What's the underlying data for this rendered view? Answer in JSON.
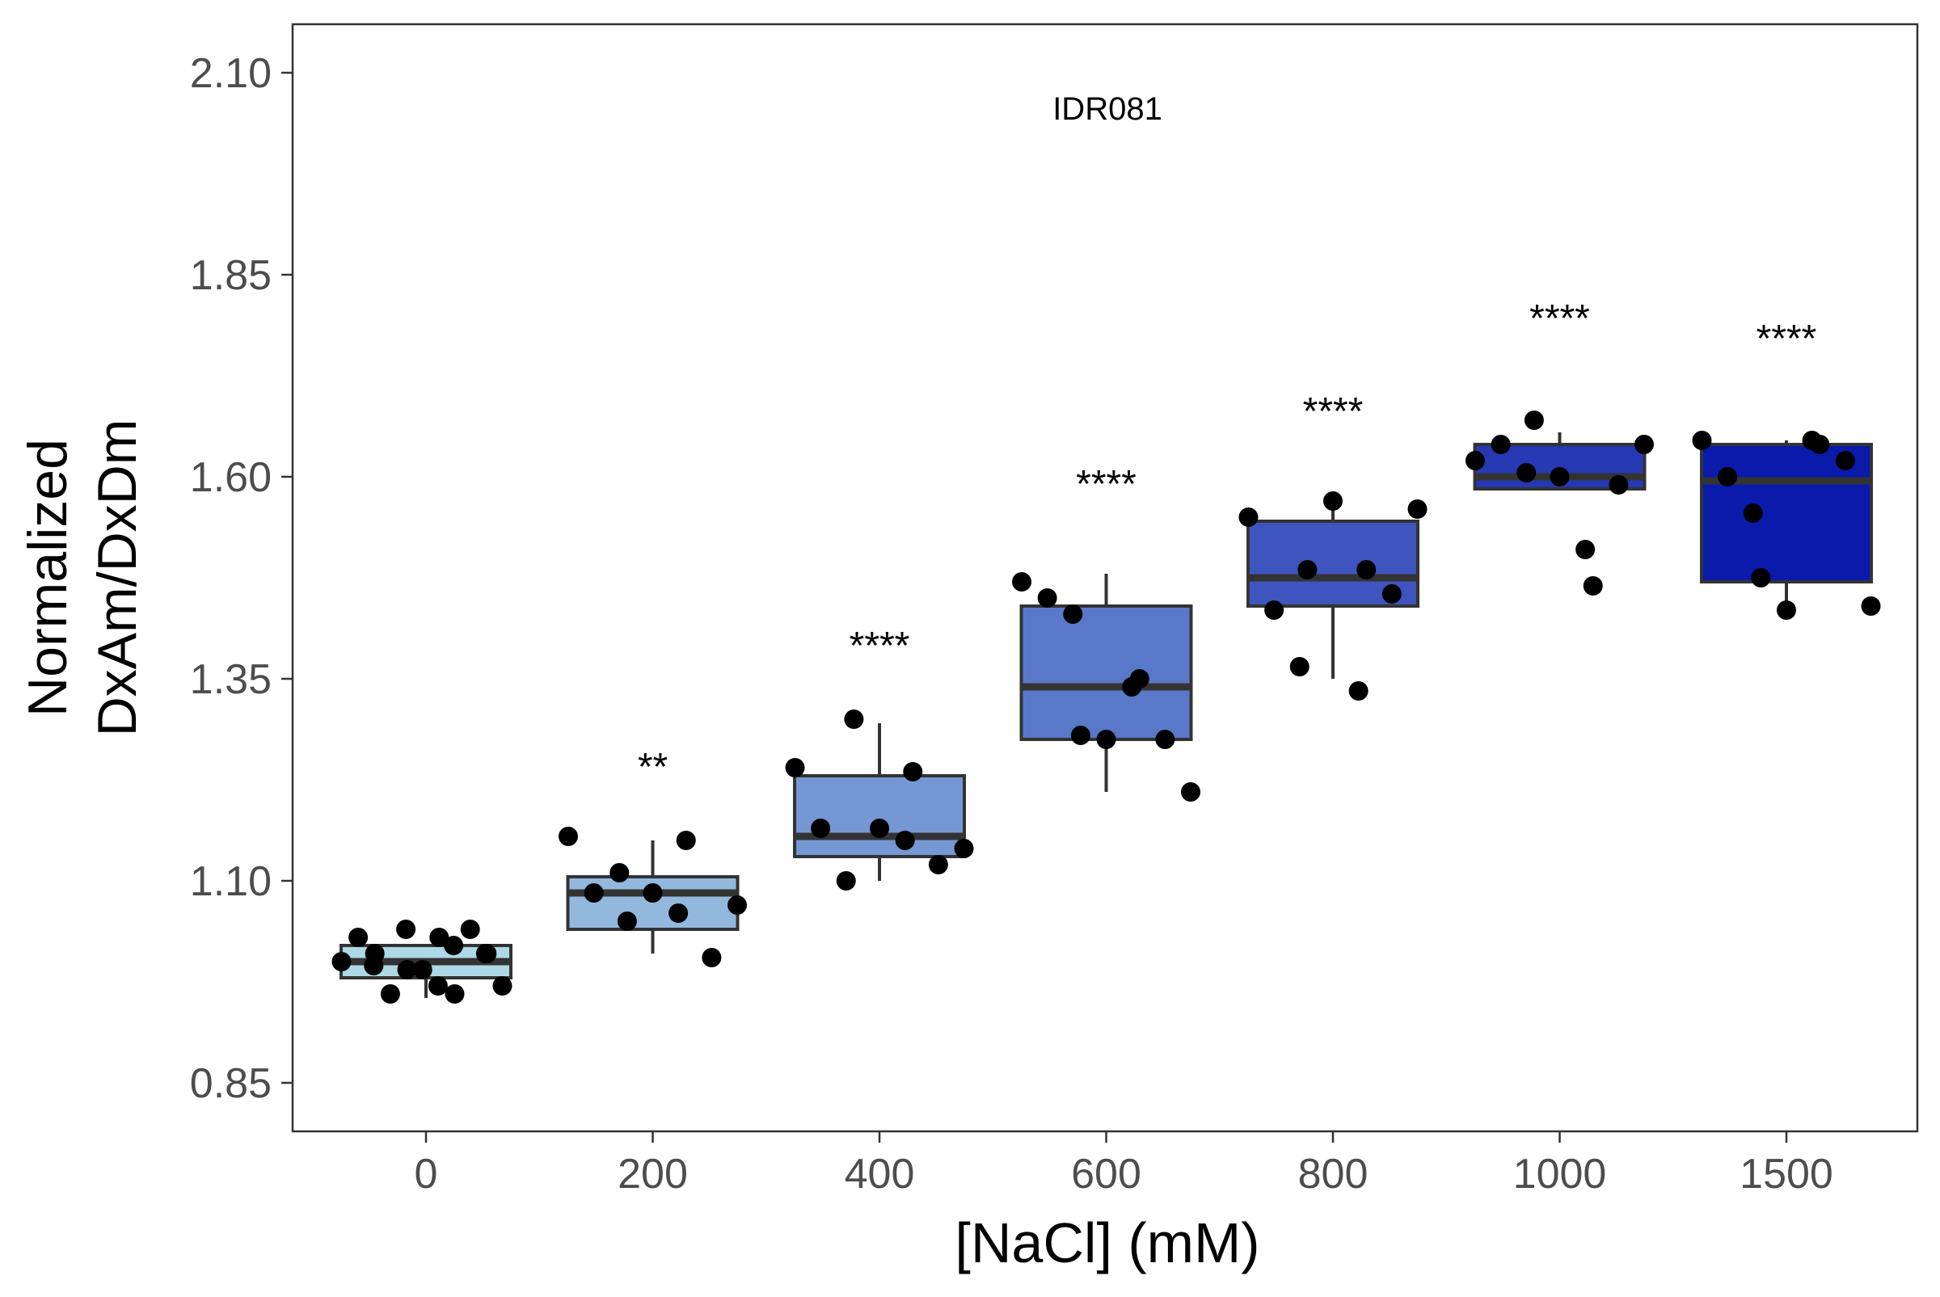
{
  "chart_data": {
    "type": "box",
    "title": "IDR081",
    "xlabel": "[NaCl] (mM)",
    "ylabel_lines": [
      "Normalized",
      "DxAm/DxDm"
    ],
    "ylim": [
      0.79,
      2.16
    ],
    "yticks": [
      "0.85",
      "1.10",
      "1.35",
      "1.60",
      "1.85",
      "2.10"
    ],
    "grid": false,
    "legend": "none",
    "categories": [
      "0",
      "200",
      "400",
      "600",
      "800",
      "1000",
      "1500"
    ],
    "colors": [
      "#ADD8E6",
      "#93B8DE",
      "#7598D4",
      "#5A78C9",
      "#3E55BF",
      "#2738B4",
      "#0A1AAA"
    ],
    "boxes": [
      {
        "q1": 0.98,
        "median": 1.0,
        "q3": 1.02,
        "whisker_low": 0.955,
        "whisker_high": 1.02
      },
      {
        "q1": 1.04,
        "median": 1.085,
        "q3": 1.105,
        "whisker_low": 1.01,
        "whisker_high": 1.15
      },
      {
        "q1": 1.13,
        "median": 1.155,
        "q3": 1.23,
        "whisker_low": 1.1,
        "whisker_high": 1.295
      },
      {
        "q1": 1.275,
        "median": 1.34,
        "q3": 1.44,
        "whisker_low": 1.21,
        "whisker_high": 1.48
      },
      {
        "q1": 1.44,
        "median": 1.475,
        "q3": 1.545,
        "whisker_low": 1.35,
        "whisker_high": 1.565
      },
      {
        "q1": 1.585,
        "median": 1.6,
        "q3": 1.64,
        "whisker_low": 1.585,
        "whisker_high": 1.655
      },
      {
        "q1": 1.47,
        "median": 1.595,
        "q3": 1.64,
        "whisker_low": 1.435,
        "whisker_high": 1.645
      }
    ],
    "points": [
      [
        1.0,
        1.03,
        1.01,
        0.995,
        0.96,
        0.99,
        1.04,
        0.99,
        1.03,
        0.97,
        0.96,
        1.02,
        1.04,
        1.01,
        1.01,
        0.97
      ],
      [
        1.155,
        1.085,
        1.11,
        1.05,
        1.085,
        1.06,
        1.15,
        1.005,
        1.07
      ],
      [
        1.24,
        1.165,
        1.1,
        1.3,
        1.165,
        1.15,
        1.235,
        1.12,
        1.14
      ],
      [
        1.47,
        1.45,
        1.43,
        1.28,
        1.275,
        1.34,
        1.35,
        1.275,
        1.21
      ],
      [
        1.55,
        1.435,
        1.365,
        1.485,
        1.57,
        1.335,
        1.485,
        1.455,
        1.56
      ],
      [
        1.62,
        1.64,
        1.605,
        1.67,
        1.6,
        1.51,
        1.465,
        1.59,
        1.64
      ],
      [
        1.645,
        1.6,
        1.555,
        1.475,
        1.435,
        1.645,
        1.64,
        1.62,
        1.44
      ]
    ],
    "annotations": [
      {
        "category": "200",
        "text": "**",
        "y": 1.245
      },
      {
        "category": "400",
        "text": "****",
        "y": 1.395
      },
      {
        "category": "600",
        "text": "****",
        "y": 1.595
      },
      {
        "category": "800",
        "text": "****",
        "y": 1.685
      },
      {
        "category": "1000",
        "text": "****",
        "y": 1.8
      },
      {
        "category": "1500",
        "text": "****",
        "y": 1.775
      }
    ]
  }
}
